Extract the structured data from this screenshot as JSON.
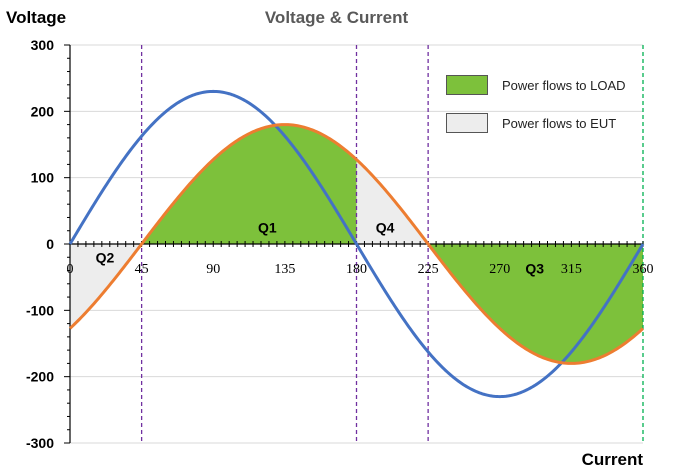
{
  "chart_data": {
    "type": "line",
    "title": "Voltage & Current",
    "ylabel": "Voltage",
    "xlabel": "Current",
    "xlim": [
      0,
      360
    ],
    "ylim": [
      -300,
      300
    ],
    "x_ticks": [
      0,
      45,
      90,
      135,
      180,
      225,
      270,
      315,
      360
    ],
    "x_tick_labels": [
      "0",
      "45",
      "90",
      "135",
      "180",
      "225",
      "270",
      "315",
      "360"
    ],
    "y_ticks": [
      -300,
      -200,
      -100,
      0,
      100,
      200,
      300
    ],
    "y_tick_labels": [
      "-300",
      "-200",
      "-100",
      "0",
      "100",
      "200",
      "300"
    ],
    "series": [
      {
        "color": "#4472C4",
        "amplitude": 230,
        "phase_deg": 0,
        "x": [
          0,
          45,
          90,
          135,
          180,
          225,
          270,
          315,
          360
        ],
        "values": [
          0,
          163,
          230,
          163,
          0,
          -163,
          -230,
          -163,
          0
        ]
      },
      {
        "color": "#ED7D31",
        "amplitude": 180,
        "phase_deg": -45,
        "x": [
          0,
          45,
          90,
          135,
          180,
          225,
          270,
          315,
          360
        ],
        "values": [
          -127,
          0,
          127,
          180,
          127,
          0,
          -127,
          -180,
          -127
        ]
      }
    ],
    "vertical_lines": [
      {
        "x": 45,
        "color": "#7030A0"
      },
      {
        "x": 180,
        "color": "#7030A0"
      },
      {
        "x": 225,
        "color": "#7030A0"
      },
      {
        "x": 360,
        "color": "#00B050"
      }
    ],
    "shaded_regions": [
      {
        "from": 0,
        "to": 45,
        "type": "eut"
      },
      {
        "from": 45,
        "to": 180,
        "type": "load"
      },
      {
        "from": 180,
        "to": 225,
        "type": "eut"
      },
      {
        "from": 225,
        "to": 360,
        "type": "load"
      }
    ],
    "region_labels": [
      {
        "text": "Q2",
        "x": 22,
        "y": -20
      },
      {
        "text": "Q1",
        "x": 124,
        "y": 25
      },
      {
        "text": "Q4",
        "x": 198,
        "y": 25
      },
      {
        "text": "Q3",
        "x": 292,
        "y": -37
      }
    ],
    "legend": {
      "position": "top-right",
      "entries": [
        {
          "label": "Power flows to LOAD",
          "color": "#7DC13B"
        },
        {
          "label": "Power flows to EUT",
          "color": "#EDEDED"
        }
      ]
    },
    "grid": true
  }
}
